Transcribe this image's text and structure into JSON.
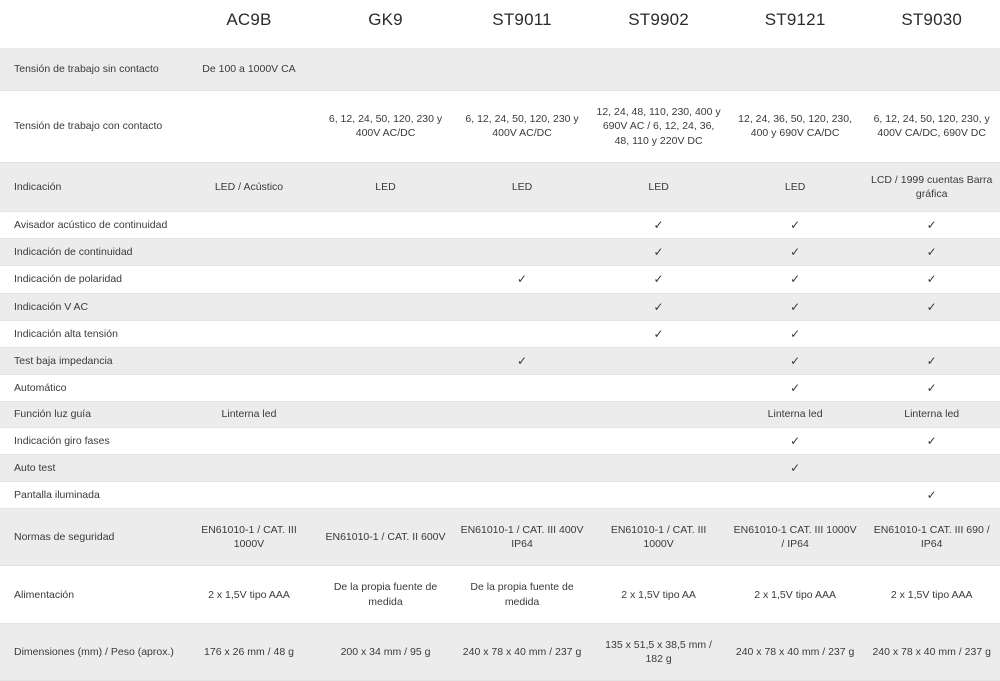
{
  "products": [
    "AC9B",
    "GK9",
    "ST9011",
    "ST9902",
    "ST9121",
    "ST9030"
  ],
  "checkmark": "✓",
  "rows": [
    {
      "label": "Tensión de trabajo sin contacto",
      "size": "tall",
      "shaded": true,
      "cells": [
        "De 100 a 1000V CA",
        "",
        "",
        "",
        "",
        ""
      ]
    },
    {
      "label": "Tensión de trabajo con contacto",
      "size": "tall",
      "shaded": false,
      "cells": [
        "",
        "6, 12, 24, 50, 120, 230 y 400V AC/DC",
        "6, 12, 24, 50, 120, 230 y 400V AC/DC",
        "12, 24, 48, 110, 230, 400 y 690V AC / 6, 12, 24, 36, 48, 110 y 220V DC",
        "12, 24, 36, 50, 120, 230, 400 y 690V CA/DC",
        "6, 12, 24, 50, 120, 230, y 400V CA/DC, 690V DC"
      ]
    },
    {
      "label": "Indicación",
      "size": "mid",
      "shaded": true,
      "cells": [
        "LED / Acústico",
        "LED",
        "LED",
        "LED",
        "LED",
        "LCD / 1999 cuentas Barra gráfica"
      ]
    },
    {
      "label": "Avisador acústico de continuidad",
      "size": "short",
      "shaded": false,
      "cells": [
        "",
        "",
        "",
        "✓",
        "✓",
        "✓"
      ]
    },
    {
      "label": "Indicación de continuidad",
      "size": "short",
      "shaded": true,
      "cells": [
        "",
        "",
        "",
        "✓",
        "✓",
        "✓"
      ]
    },
    {
      "label": "Indicación de polaridad",
      "size": "short",
      "shaded": false,
      "cells": [
        "",
        "",
        "✓",
        "✓",
        "✓",
        "✓"
      ]
    },
    {
      "label": "Indicación V AC",
      "size": "short",
      "shaded": true,
      "cells": [
        "",
        "",
        "",
        "✓",
        "✓",
        "✓"
      ]
    },
    {
      "label": "Indicación alta tensión",
      "size": "short",
      "shaded": false,
      "cells": [
        "",
        "",
        "",
        "✓",
        "✓",
        ""
      ]
    },
    {
      "label": "Test baja impedancia",
      "size": "short",
      "shaded": true,
      "cells": [
        "",
        "",
        "✓",
        "",
        "✓",
        "✓"
      ]
    },
    {
      "label": "Automático",
      "size": "short",
      "shaded": false,
      "cells": [
        "",
        "",
        "",
        "",
        "✓",
        "✓"
      ]
    },
    {
      "label": "Función luz guía",
      "size": "short",
      "shaded": true,
      "cells": [
        "Linterna led",
        "",
        "",
        "",
        "Linterna led",
        "Linterna led"
      ]
    },
    {
      "label": "Indicación giro fases",
      "size": "short",
      "shaded": false,
      "cells": [
        "",
        "",
        "",
        "",
        "✓",
        "✓"
      ]
    },
    {
      "label": "Auto test",
      "size": "short",
      "shaded": true,
      "cells": [
        "",
        "",
        "",
        "",
        "✓",
        ""
      ]
    },
    {
      "label": "Pantalla iluminada",
      "size": "short",
      "shaded": false,
      "cells": [
        "",
        "",
        "",
        "",
        "",
        "✓"
      ]
    },
    {
      "label": "Normas de seguridad",
      "size": "tall",
      "shaded": true,
      "cells": [
        "EN61010-1 / CAT. III 1000V",
        "EN61010-1 / CAT. II 600V",
        "EN61010-1 / CAT. III 400V IP64",
        "EN61010-1 / CAT. III 1000V",
        "EN61010-1 CAT. III 1000V / IP64",
        "EN61010-1 CAT. III 690 / IP64"
      ]
    },
    {
      "label": "Alimentación",
      "size": "tall",
      "shaded": false,
      "cells": [
        "2 x 1,5V tipo AAA",
        "De la propia fuente de medida",
        "De la propia fuente de medida",
        "2 x 1,5V tipo AA",
        "2 x 1,5V tipo AAA",
        "2 x 1,5V tipo AAA"
      ]
    },
    {
      "label": "Dimensiones (mm) / Peso (aprox.)",
      "size": "tall",
      "shaded": true,
      "cells": [
        "176 x 26 mm / 48 g",
        "200 x 34 mm / 95 g",
        "240 x 78 x 40 mm / 237 g",
        "135 x 51,5 x 38,5 mm / 182 g",
        "240 x 78 x 40 mm / 237 g",
        "240 x 78 x 40 mm / 237 g"
      ]
    }
  ]
}
